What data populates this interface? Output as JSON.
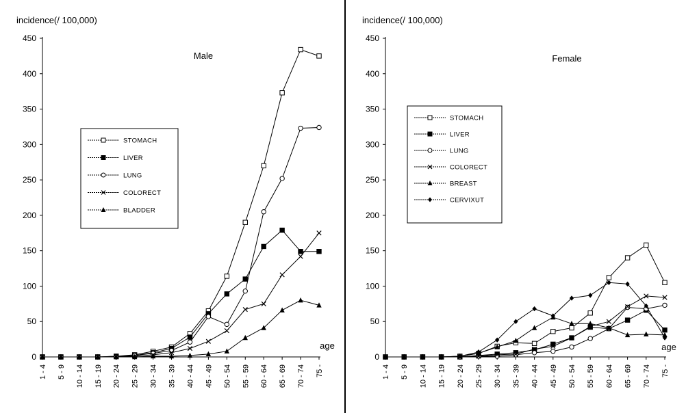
{
  "chart_data": [
    {
      "type": "line",
      "title": "Male",
      "ylabel": "incidence(/ 100,000)",
      "xlabel": "age",
      "ylim": [
        0,
        450
      ],
      "yticks": [
        0,
        50,
        100,
        150,
        200,
        250,
        300,
        350,
        400,
        450
      ],
      "categories": [
        "1 - 4",
        "5 - 9",
        "10 - 14",
        "15 - 19",
        "20 - 24",
        "25 - 29",
        "30 - 34",
        "35 - 39",
        "40 - 44",
        "45 - 49",
        "50 - 54",
        "55 - 59",
        "60 - 64",
        "65 - 69",
        "70 - 74",
        "75 -"
      ],
      "legend_position": "middle-left",
      "series": [
        {
          "name": "STOMACH",
          "marker": "square-open",
          "values": [
            0,
            0,
            0,
            0,
            1,
            3,
            8,
            14,
            33,
            65,
            114,
            190,
            270,
            373,
            434,
            425
          ]
        },
        {
          "name": "LIVER",
          "marker": "square-filled",
          "values": [
            0,
            0,
            0,
            0,
            1,
            2,
            6,
            12,
            28,
            61,
            89,
            110,
            156,
            179,
            149,
            149
          ]
        },
        {
          "name": "LUNG",
          "marker": "circle-open",
          "values": [
            0,
            0,
            0,
            0,
            0,
            2,
            5,
            9,
            21,
            57,
            46,
            93,
            205,
            252,
            323,
            324
          ]
        },
        {
          "name": "COLORECT",
          "marker": "x",
          "values": [
            0,
            0,
            0,
            0,
            0,
            1,
            3,
            6,
            12,
            22,
            37,
            67,
            75,
            116,
            142,
            175
          ]
        },
        {
          "name": "BLADDER",
          "marker": "triangle",
          "values": [
            0,
            0,
            0,
            0,
            0,
            0,
            1,
            1,
            2,
            4,
            8,
            27,
            41,
            66,
            80,
            73
          ]
        }
      ]
    },
    {
      "type": "line",
      "title": "Female",
      "ylabel": "incidence(/ 100,000)",
      "xlabel": "age",
      "ylim": [
        0,
        450
      ],
      "yticks": [
        0,
        50,
        100,
        150,
        200,
        250,
        300,
        350,
        400,
        450
      ],
      "categories": [
        "1 - 4",
        "5 - 9",
        "10 - 14",
        "15 - 19",
        "20 - 24",
        "25 - 29",
        "30 - 34",
        "35 - 39",
        "40 - 44",
        "45 - 49",
        "50 - 54",
        "55 - 59",
        "60 - 64",
        "65 - 69",
        "70 - 74",
        "75 -"
      ],
      "legend_position": "upper-left",
      "series": [
        {
          "name": "STOMACH",
          "marker": "square-open",
          "values": [
            0,
            0,
            0,
            0,
            1,
            5,
            15,
            20,
            19,
            36,
            41,
            62,
            112,
            140,
            158,
            105
          ]
        },
        {
          "name": "LIVER",
          "marker": "square-filled",
          "values": [
            0,
            0,
            0,
            0,
            0,
            2,
            4,
            6,
            10,
            18,
            27,
            42,
            40,
            52,
            66,
            38
          ]
        },
        {
          "name": "LUNG",
          "marker": "circle-open",
          "values": [
            0,
            0,
            0,
            0,
            0,
            1,
            1,
            3,
            6,
            8,
            14,
            26,
            40,
            70,
            68,
            73
          ]
        },
        {
          "name": "COLORECT",
          "marker": "x",
          "values": [
            0,
            0,
            0,
            0,
            0,
            1,
            3,
            4,
            11,
            15,
            27,
            43,
            50,
            71,
            86,
            84
          ]
        },
        {
          "name": "BREAST",
          "marker": "triangle",
          "values": [
            0,
            0,
            0,
            0,
            1,
            5,
            14,
            23,
            41,
            56,
            47,
            47,
            41,
            31,
            32,
            31
          ]
        },
        {
          "name": "CERVIXUT",
          "marker": "diamond",
          "values": [
            0,
            0,
            0,
            0,
            1,
            7,
            24,
            50,
            68,
            58,
            83,
            87,
            105,
            103,
            72,
            27
          ]
        }
      ]
    }
  ]
}
